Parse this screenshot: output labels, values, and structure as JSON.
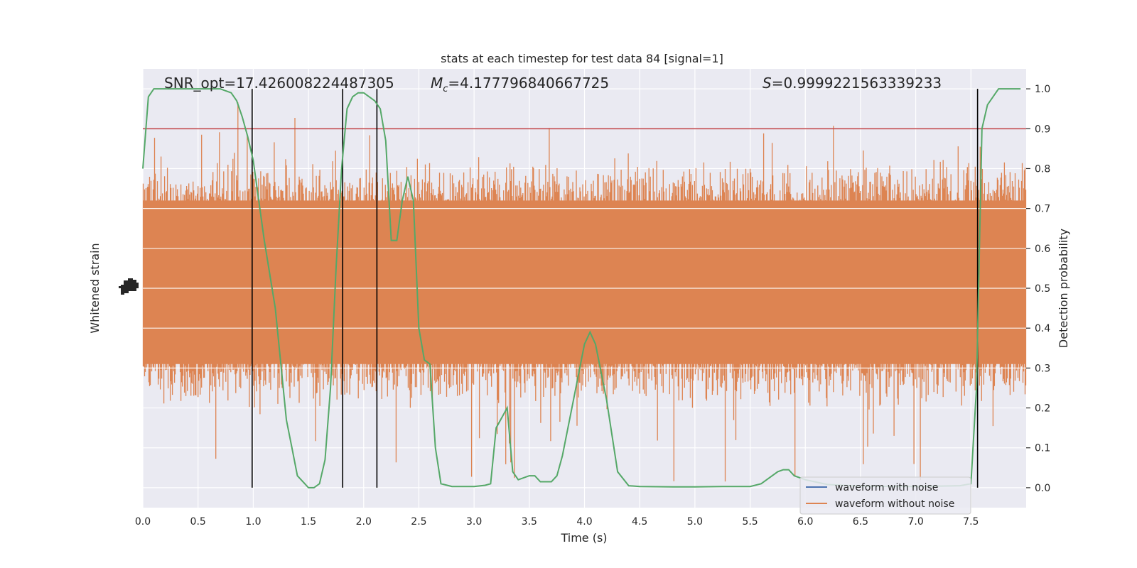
{
  "chart_data": {
    "type": "line",
    "title": "stats at each timestep for test data 84 [signal=1]",
    "xlabel": "Time (s)",
    "ylabel_left": "Whitened strain",
    "ylabel_right": "Detection probability",
    "xlim": [
      0.0,
      8.0
    ],
    "ylim_right": [
      -0.05,
      1.05
    ],
    "x_ticks": [
      "0.0",
      "0.5",
      "1.0",
      "1.5",
      "2.0",
      "2.5",
      "3.0",
      "3.5",
      "4.0",
      "4.5",
      "5.0",
      "5.5",
      "6.0",
      "6.5",
      "7.0",
      "7.5"
    ],
    "y_ticks_right": [
      "0.0",
      "0.1",
      "0.2",
      "0.3",
      "0.4",
      "0.5",
      "0.6",
      "0.7",
      "0.8",
      "0.9",
      "1.0"
    ],
    "grid": true,
    "legend_position": "bottom-right",
    "annotations": {
      "snr": "SNR_opt=17.426008224487305",
      "mc_symbol": "M",
      "mc_sub": "c",
      "mc_value": "=4.177796840667725",
      "s_symbol": "S",
      "s_value": "=0.9999221563339233"
    },
    "series": [
      {
        "name": "waveform with noise",
        "color": "#4c72b0"
      },
      {
        "name": "waveform without noise",
        "color": "#dd8452",
        "band": {
          "typical_low": 0.25,
          "typical_high": 0.78,
          "peak_low": 0.0,
          "peak_high": 0.97
        }
      },
      {
        "name_hidden": "detection probability",
        "color": "#55a868",
        "x": [
          0.0,
          0.05,
          0.1,
          0.2,
          0.3,
          0.5,
          0.7,
          0.8,
          0.85,
          0.9,
          0.95,
          1.0,
          1.05,
          1.1,
          1.2,
          1.3,
          1.35,
          1.4,
          1.5,
          1.55,
          1.6,
          1.65,
          1.7,
          1.75,
          1.8,
          1.85,
          1.9,
          1.95,
          2.0,
          2.05,
          2.1,
          2.15,
          2.2,
          2.25,
          2.3,
          2.35,
          2.4,
          2.45,
          2.5,
          2.55,
          2.6,
          2.65,
          2.7,
          2.8,
          2.9,
          3.0,
          3.1,
          3.15,
          3.2,
          3.3,
          3.35,
          3.4,
          3.5,
          3.55,
          3.6,
          3.7,
          3.75,
          3.8,
          3.9,
          4.0,
          4.05,
          4.1,
          4.2,
          4.3,
          4.4,
          4.5,
          4.8,
          5.0,
          5.3,
          5.4,
          5.5,
          5.6,
          5.7,
          5.75,
          5.8,
          5.85,
          5.9,
          6.0,
          6.2,
          6.5,
          7.0,
          7.4,
          7.5,
          7.55,
          7.6,
          7.65,
          7.75,
          7.8,
          7.95
        ],
        "y": [
          0.8,
          0.98,
          1.0,
          1.0,
          1.0,
          1.0,
          1.0,
          0.99,
          0.97,
          0.93,
          0.88,
          0.82,
          0.72,
          0.62,
          0.45,
          0.17,
          0.1,
          0.03,
          0.0,
          0.0,
          0.01,
          0.07,
          0.25,
          0.55,
          0.8,
          0.95,
          0.98,
          0.99,
          0.99,
          0.98,
          0.97,
          0.95,
          0.87,
          0.62,
          0.62,
          0.72,
          0.78,
          0.72,
          0.4,
          0.32,
          0.31,
          0.1,
          0.01,
          0.003,
          0.003,
          0.003,
          0.006,
          0.01,
          0.15,
          0.2,
          0.04,
          0.02,
          0.03,
          0.03,
          0.015,
          0.015,
          0.03,
          0.08,
          0.22,
          0.36,
          0.39,
          0.36,
          0.22,
          0.04,
          0.005,
          0.003,
          0.002,
          0.002,
          0.003,
          0.003,
          0.003,
          0.01,
          0.03,
          0.04,
          0.045,
          0.045,
          0.03,
          0.02,
          0.008,
          0.004,
          0.003,
          0.005,
          0.01,
          0.25,
          0.9,
          0.96,
          1.0,
          1.0,
          1.0
        ]
      },
      {
        "name_hidden": "threshold",
        "color": "#c44e52",
        "y": 0.9
      }
    ],
    "vlines_x": [
      0.99,
      1.81,
      2.12,
      7.56
    ],
    "left_axis_ticks": "overlapping"
  }
}
